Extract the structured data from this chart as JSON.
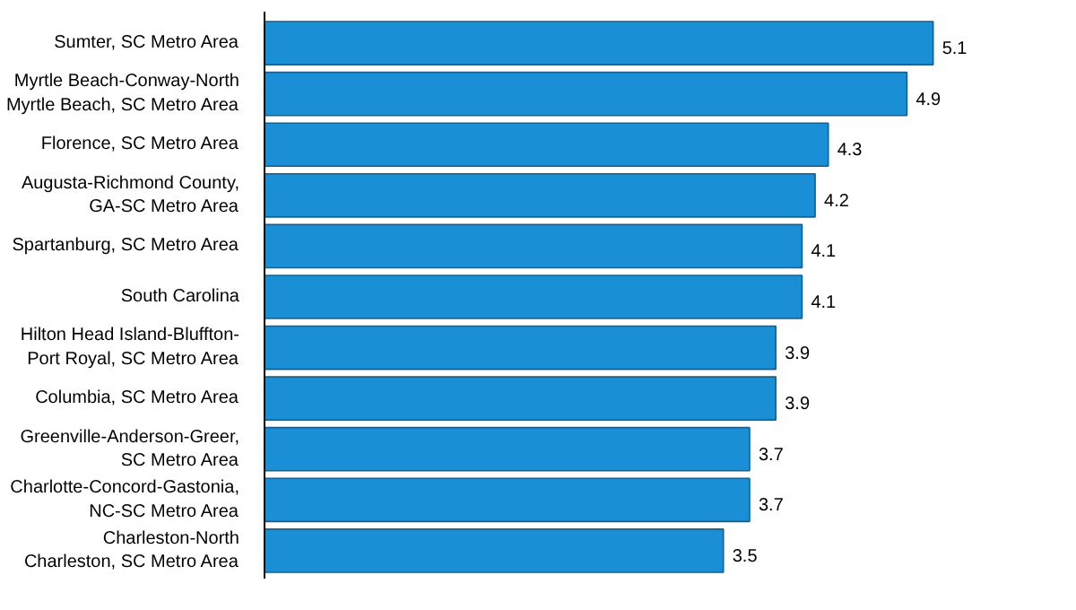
{
  "chart_data": {
    "type": "bar",
    "orientation": "horizontal",
    "data_labels": true,
    "color": "#1a8fd6",
    "categories": [
      "Sumter, SC Metro Area",
      "Myrtle Beach-Conway-North\nMyrtle Beach, SC Metro Area",
      "Florence, SC Metro Area",
      "Augusta-Richmond County,\nGA-SC Metro Area",
      "Spartanburg, SC Metro Area",
      "South Carolina",
      "Hilton Head Island-Bluffton-\nPort Royal, SC Metro Area",
      "Columbia, SC Metro Area",
      "Greenville-Anderson-Greer,\nSC Metro Area",
      "Charlotte-Concord-Gastonia,\nNC-SC Metro Area",
      "Charleston-North\nCharleston, SC Metro Area"
    ],
    "values": [
      5.1,
      4.9,
      4.3,
      4.2,
      4.1,
      4.1,
      3.9,
      3.9,
      3.7,
      3.7,
      3.5
    ]
  }
}
